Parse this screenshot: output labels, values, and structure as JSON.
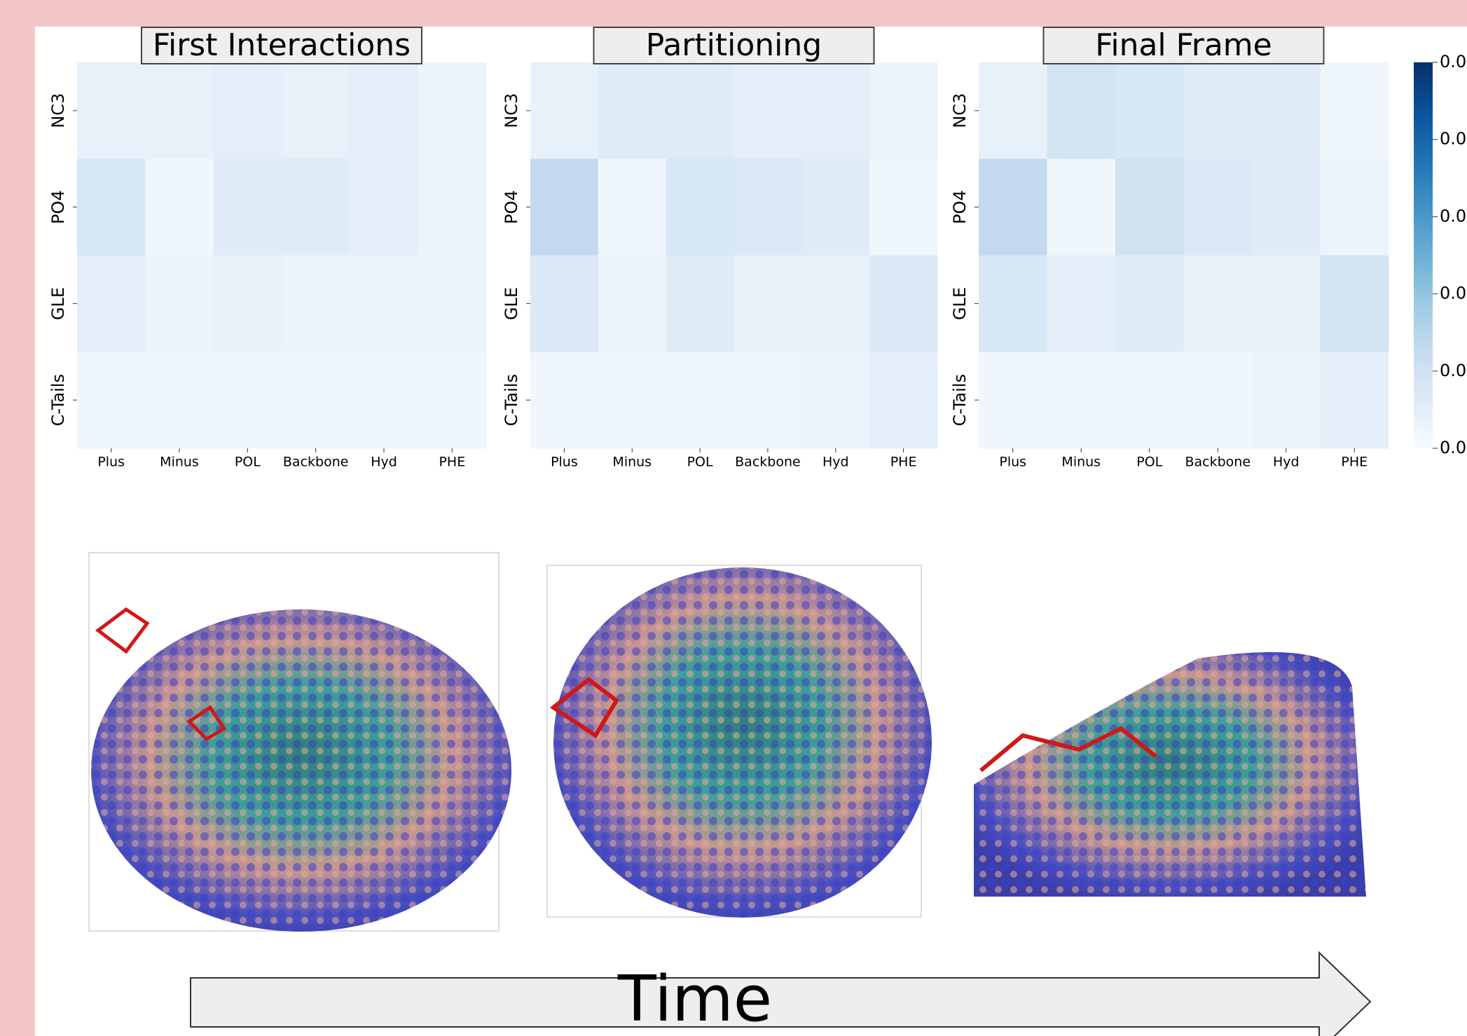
{
  "chart_data": [
    {
      "type": "heatmap",
      "title": "First Interactions",
      "x_categories": [
        "Plus",
        "Minus",
        "POL",
        "Backbone",
        "Hyd",
        "PHE"
      ],
      "y_categories": [
        "NC3",
        "PO4",
        "GLE",
        "C-Tails"
      ],
      "values": [
        [
          0.004,
          0.004,
          0.005,
          0.004,
          0.005,
          0.003
        ],
        [
          0.008,
          0.002,
          0.006,
          0.006,
          0.005,
          0.003
        ],
        [
          0.005,
          0.003,
          0.004,
          0.003,
          0.003,
          0.003
        ],
        [
          0.002,
          0.002,
          0.002,
          0.002,
          0.002,
          0.002
        ]
      ]
    },
    {
      "type": "heatmap",
      "title": "Partitioning",
      "x_categories": [
        "Plus",
        "Minus",
        "POL",
        "Backbone",
        "Hyd",
        "PHE"
      ],
      "y_categories": [
        "NC3",
        "PO4",
        "GLE",
        "C-Tails"
      ],
      "values": [
        [
          0.004,
          0.006,
          0.006,
          0.005,
          0.005,
          0.003
        ],
        [
          0.013,
          0.002,
          0.008,
          0.007,
          0.006,
          0.002
        ],
        [
          0.007,
          0.003,
          0.006,
          0.004,
          0.004,
          0.007
        ],
        [
          0.002,
          0.002,
          0.002,
          0.002,
          0.003,
          0.005
        ]
      ]
    },
    {
      "type": "heatmap",
      "title": "Final Frame",
      "x_categories": [
        "Plus",
        "Minus",
        "POL",
        "Backbone",
        "Hyd",
        "PHE"
      ],
      "y_categories": [
        "NC3",
        "PO4",
        "GLE",
        "C-Tails"
      ],
      "values": [
        [
          0.004,
          0.009,
          0.008,
          0.006,
          0.006,
          0.002
        ],
        [
          0.013,
          0.002,
          0.01,
          0.007,
          0.006,
          0.003
        ],
        [
          0.008,
          0.005,
          0.006,
          0.004,
          0.004,
          0.009
        ],
        [
          0.002,
          0.002,
          0.002,
          0.002,
          0.003,
          0.005
        ]
      ]
    }
  ],
  "colorbar": {
    "colormap": "Blues",
    "clim": [
      0,
      0.05
    ],
    "ticks": [
      {
        "value": 0,
        "label": "0.0"
      },
      {
        "value": 0.01,
        "label": "0.0"
      },
      {
        "value": 0.02,
        "label": "0.0"
      },
      {
        "value": 0.03,
        "label": "0.0"
      },
      {
        "value": 0.04,
        "label": "0.0"
      },
      {
        "value": 0.05,
        "label": "0.0"
      }
    ]
  },
  "annotation": "Time"
}
